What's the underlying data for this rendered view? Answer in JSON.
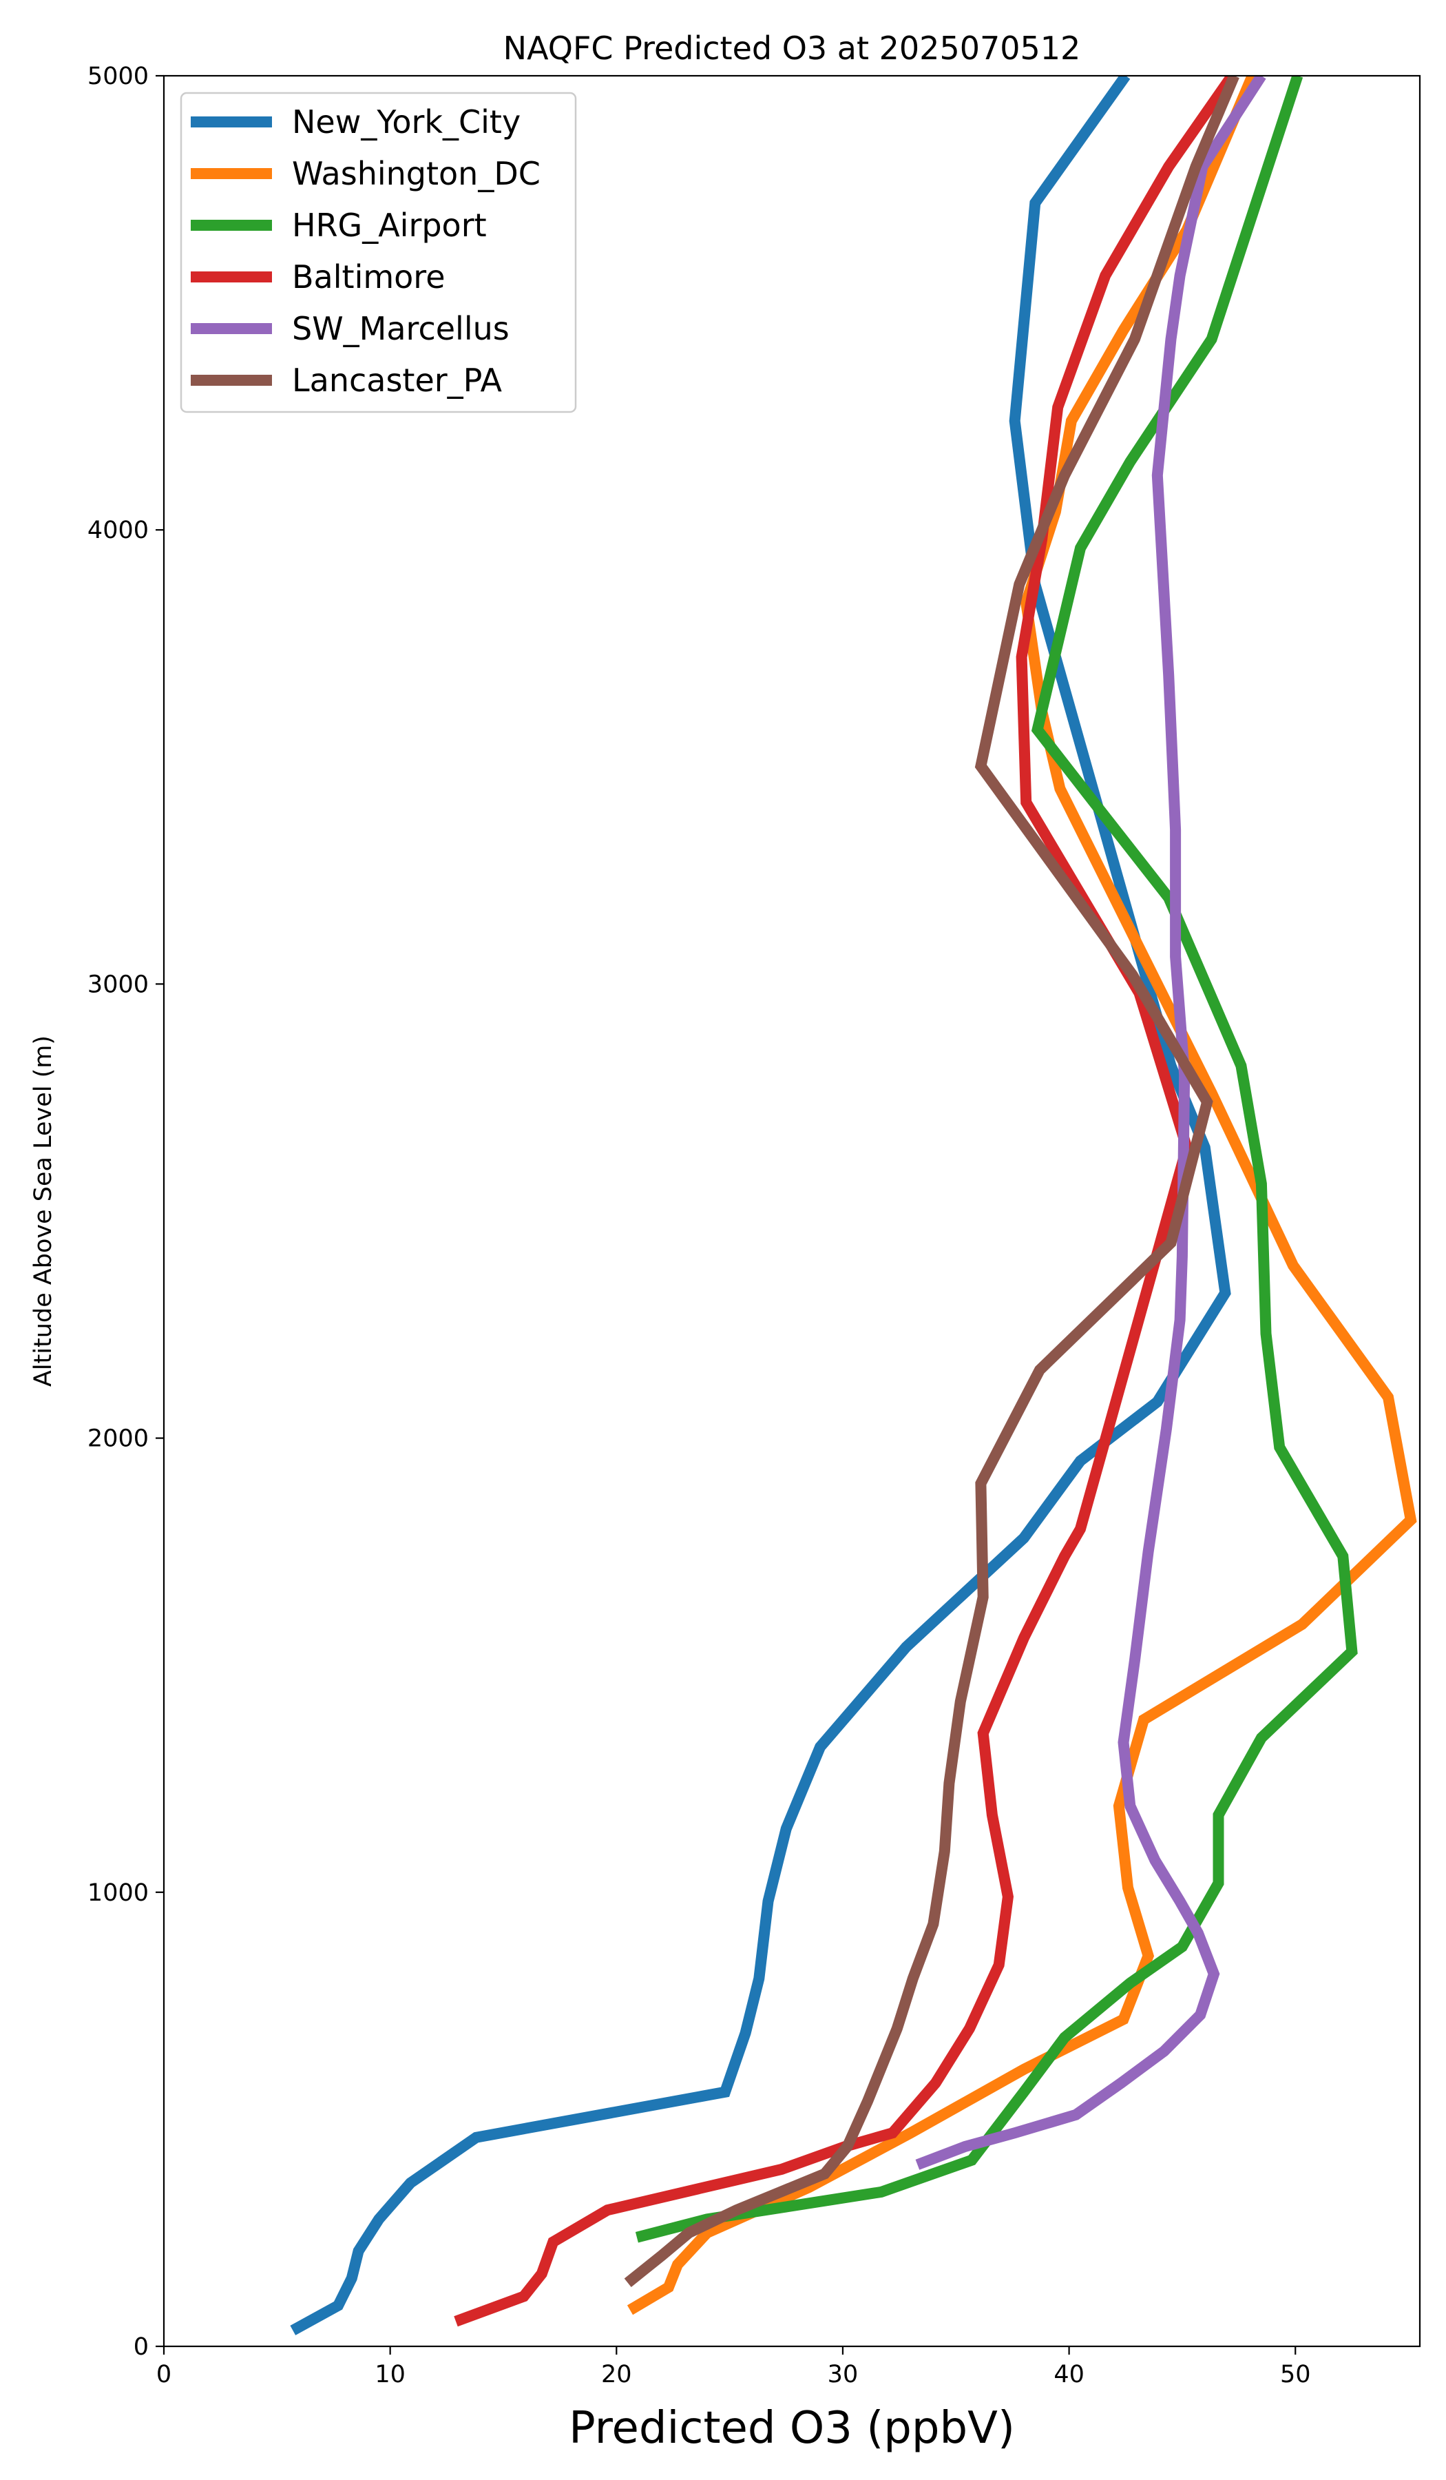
{
  "chart_data": {
    "type": "line",
    "title": "NAQFC Predicted O3 at 2025070512",
    "xlabel": "Predicted O3 (ppbV)",
    "ylabel": "Altitude Above Sea Level (m)",
    "xlim": [
      0,
      55.5
    ],
    "ylim": [
      0,
      5000
    ],
    "xticks": [
      0,
      10,
      20,
      30,
      40,
      50
    ],
    "yticks": [
      0,
      1000,
      2000,
      3000,
      4000,
      5000
    ],
    "grid": false,
    "legend_position": "top-left",
    "series": [
      {
        "name": "New_York_City",
        "color": "#1f77b4",
        "points": [
          [
            5.7,
            35
          ],
          [
            7.7,
            90
          ],
          [
            8.3,
            150
          ],
          [
            8.6,
            210
          ],
          [
            9.5,
            280
          ],
          [
            10.9,
            360
          ],
          [
            13.8,
            460
          ],
          [
            24.8,
            560
          ],
          [
            25.7,
            690
          ],
          [
            26.3,
            810
          ],
          [
            26.7,
            980
          ],
          [
            27.5,
            1140
          ],
          [
            29.0,
            1320
          ],
          [
            32.8,
            1540
          ],
          [
            38.0,
            1780
          ],
          [
            40.5,
            1950
          ],
          [
            43.9,
            2080
          ],
          [
            46.9,
            2320
          ],
          [
            46.0,
            2640
          ],
          [
            44.5,
            2820
          ],
          [
            38.5,
            3880
          ],
          [
            37.6,
            4240
          ],
          [
            38.5,
            4720
          ],
          [
            42.5,
            5000
          ]
        ]
      },
      {
        "name": "Washington_DC",
        "color": "#ff7f0e",
        "points": [
          [
            20.6,
            80
          ],
          [
            22.3,
            130
          ],
          [
            22.7,
            180
          ],
          [
            24.0,
            250
          ],
          [
            28.5,
            350
          ],
          [
            33.0,
            470
          ],
          [
            38.0,
            610
          ],
          [
            42.4,
            720
          ],
          [
            43.5,
            860
          ],
          [
            42.6,
            1010
          ],
          [
            42.2,
            1190
          ],
          [
            43.3,
            1380
          ],
          [
            50.3,
            1590
          ],
          [
            55.1,
            1820
          ],
          [
            54.1,
            2090
          ],
          [
            49.9,
            2380
          ],
          [
            46.3,
            2760
          ],
          [
            39.6,
            3430
          ],
          [
            38.8,
            3600
          ],
          [
            38.1,
            3840
          ],
          [
            39.4,
            4040
          ],
          [
            40.1,
            4240
          ],
          [
            42.4,
            4440
          ],
          [
            45.2,
            4660
          ],
          [
            48.1,
            5000
          ]
        ]
      },
      {
        "name": "HRG_Airport",
        "color": "#2ca02c",
        "points": [
          [
            20.9,
            240
          ],
          [
            24.0,
            280
          ],
          [
            31.7,
            340
          ],
          [
            35.7,
            410
          ],
          [
            38.0,
            560
          ],
          [
            39.8,
            680
          ],
          [
            42.7,
            800
          ],
          [
            45.0,
            880
          ],
          [
            46.6,
            1020
          ],
          [
            46.6,
            1170
          ],
          [
            48.5,
            1340
          ],
          [
            52.5,
            1530
          ],
          [
            52.1,
            1740
          ],
          [
            49.3,
            1980
          ],
          [
            48.7,
            2230
          ],
          [
            48.5,
            2560
          ],
          [
            47.6,
            2820
          ],
          [
            44.4,
            3190
          ],
          [
            41.1,
            3400
          ],
          [
            38.6,
            3560
          ],
          [
            40.5,
            3960
          ],
          [
            42.7,
            4150
          ],
          [
            46.3,
            4420
          ],
          [
            50.1,
            5000
          ]
        ]
      },
      {
        "name": "Baltimore",
        "color": "#d62728",
        "points": [
          [
            12.9,
            55
          ],
          [
            15.9,
            110
          ],
          [
            16.7,
            160
          ],
          [
            17.2,
            230
          ],
          [
            19.6,
            300
          ],
          [
            27.3,
            390
          ],
          [
            30.1,
            440
          ],
          [
            32.2,
            470
          ],
          [
            34.1,
            580
          ],
          [
            35.6,
            700
          ],
          [
            36.9,
            840
          ],
          [
            37.3,
            990
          ],
          [
            36.6,
            1170
          ],
          [
            36.2,
            1350
          ],
          [
            38.0,
            1560
          ],
          [
            39.8,
            1740
          ],
          [
            40.5,
            1800
          ],
          [
            41.9,
            2050
          ],
          [
            45.2,
            2640
          ],
          [
            43.1,
            2980
          ],
          [
            38.1,
            3400
          ],
          [
            37.9,
            3720
          ],
          [
            38.8,
            3980
          ],
          [
            39.5,
            4270
          ],
          [
            41.6,
            4560
          ],
          [
            44.4,
            4800
          ],
          [
            47.2,
            5000
          ]
        ]
      },
      {
        "name": "SW_Marcellus",
        "color": "#9467bd",
        "points": [
          [
            33.3,
            400
          ],
          [
            35.4,
            440
          ],
          [
            37.6,
            470
          ],
          [
            40.3,
            510
          ],
          [
            42.3,
            580
          ],
          [
            44.2,
            650
          ],
          [
            45.8,
            730
          ],
          [
            46.4,
            820
          ],
          [
            45.7,
            910
          ],
          [
            44.9,
            980
          ],
          [
            43.8,
            1070
          ],
          [
            42.7,
            1190
          ],
          [
            42.4,
            1330
          ],
          [
            42.9,
            1510
          ],
          [
            43.5,
            1750
          ],
          [
            44.3,
            2020
          ],
          [
            44.9,
            2260
          ],
          [
            45.0,
            2400
          ],
          [
            45.1,
            2800
          ],
          [
            44.7,
            3060
          ],
          [
            44.7,
            3340
          ],
          [
            44.4,
            3680
          ],
          [
            43.9,
            4120
          ],
          [
            44.5,
            4420
          ],
          [
            44.9,
            4560
          ],
          [
            45.9,
            4800
          ],
          [
            48.5,
            5000
          ]
        ]
      },
      {
        "name": "Lancaster_PA",
        "color": "#8c564b",
        "points": [
          [
            20.5,
            140
          ],
          [
            22.0,
            200
          ],
          [
            23.2,
            250
          ],
          [
            25.3,
            300
          ],
          [
            29.2,
            380
          ],
          [
            30.2,
            440
          ],
          [
            31.1,
            540
          ],
          [
            32.4,
            700
          ],
          [
            33.1,
            810
          ],
          [
            34.0,
            930
          ],
          [
            34.5,
            1090
          ],
          [
            34.7,
            1240
          ],
          [
            35.2,
            1420
          ],
          [
            36.2,
            1650
          ],
          [
            36.1,
            1900
          ],
          [
            38.7,
            2150
          ],
          [
            44.5,
            2430
          ],
          [
            46.1,
            2740
          ],
          [
            42.8,
            3020
          ],
          [
            36.1,
            3480
          ],
          [
            37.8,
            3880
          ],
          [
            39.8,
            4120
          ],
          [
            42.9,
            4420
          ],
          [
            45.6,
            4800
          ],
          [
            47.3,
            5000
          ]
        ]
      }
    ]
  }
}
